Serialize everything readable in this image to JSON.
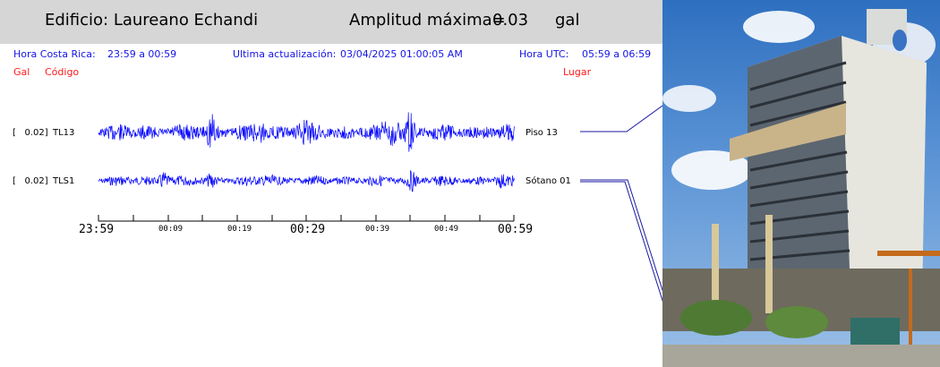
{
  "header": {
    "building": "Edificio: Laureano Echandi",
    "amp_label": "Amplitud máxima=",
    "amp_value": "0.03",
    "amp_unit": "gal"
  },
  "info": {
    "cr_label": "Hora Costa Rica:",
    "cr_range": "23:59 a 00:59",
    "update_label": "Ultima actualización:",
    "update_value": "03/04/2025 01:00:05 AM",
    "utc_label": "Hora UTC:",
    "utc_range": "05:59 a 06:59"
  },
  "columns": {
    "gal": "Gal",
    "code": "Código",
    "place": "Lugar"
  },
  "traces": [
    {
      "amp": "[   0.02]",
      "code": "TL13",
      "place": "Piso 13",
      "seed": 13,
      "height": 13
    },
    {
      "amp": "[   0.02]",
      "code": "TLS1",
      "place": "Sótano 01",
      "seed": 7,
      "height": 8
    }
  ],
  "time_axis": {
    "major": [
      "23:59",
      "00:29",
      "00:59"
    ],
    "minor": [
      "00:09",
      "00:19",
      "00:39",
      "00:49"
    ]
  },
  "colors": {
    "trace": "#0000ff",
    "info_text": "#1414e6",
    "column_text": "#ff1a1a",
    "header_bg": "#d6d6d6"
  },
  "photo": {
    "alt": "building-photo"
  }
}
